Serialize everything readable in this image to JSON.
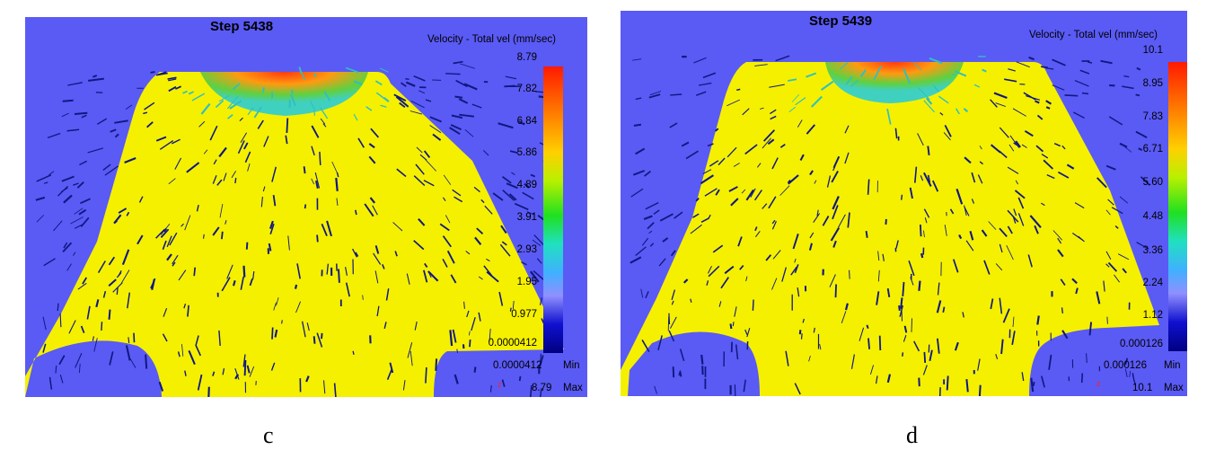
{
  "panels": [
    {
      "step": "Step 5438",
      "legend_title": "Velocity - Total vel (mm/sec)",
      "ticks": [
        "8.79",
        "7.82",
        "6.84",
        "5.86",
        "4.89",
        "3.91",
        "2.93",
        "1.95",
        "0.977",
        "0.0000412"
      ],
      "min_value": "0.0000412",
      "min_label": "Min",
      "max_value": "8.79",
      "max_label": "Max",
      "axis_label": "z",
      "caption": "c"
    },
    {
      "step": "Step 5439",
      "legend_title": "Velocity - Total vel (mm/sec)",
      "ticks": [
        "10.1",
        "8.95",
        "7.83",
        "6.71",
        "5.60",
        "4.48",
        "3.36",
        "2.24",
        "1.12",
        "0.000126"
      ],
      "min_value": "0.000126",
      "min_label": "Min",
      "max_value": "10.1",
      "max_label": "Max",
      "axis_label": "z",
      "caption": "d"
    }
  ],
  "colors": {
    "background": "#5a5af5",
    "material": "#f5f000",
    "vectors": "#101880"
  }
}
